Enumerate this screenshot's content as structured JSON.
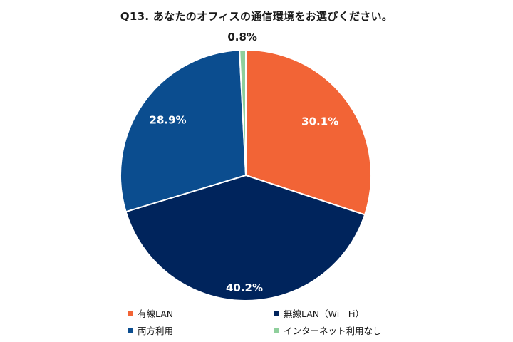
{
  "chart_data": {
    "type": "pie",
    "title": "Q13. あなたのオフィスの通信環境をお選びください。",
    "start_angle_deg": 0,
    "direction": "clockwise",
    "slices": [
      {
        "label": "有線LAN",
        "value": 30.1,
        "display": "30.1%",
        "color": "#f26436",
        "label_color": "#ffffff"
      },
      {
        "label": "無線LAN（Wi－Fi）",
        "value": 40.2,
        "display": "40.2%",
        "color": "#00245c",
        "label_color": "#ffffff"
      },
      {
        "label": "両方利用",
        "value": 28.9,
        "display": "28.9%",
        "color": "#0b4d8f",
        "label_color": "#ffffff"
      },
      {
        "label": "インターネット利用なし",
        "value": 0.8,
        "display": "0.8%",
        "color": "#8fcf9c",
        "label_color": "#1a1a1a"
      }
    ],
    "legend_position": "bottom"
  }
}
